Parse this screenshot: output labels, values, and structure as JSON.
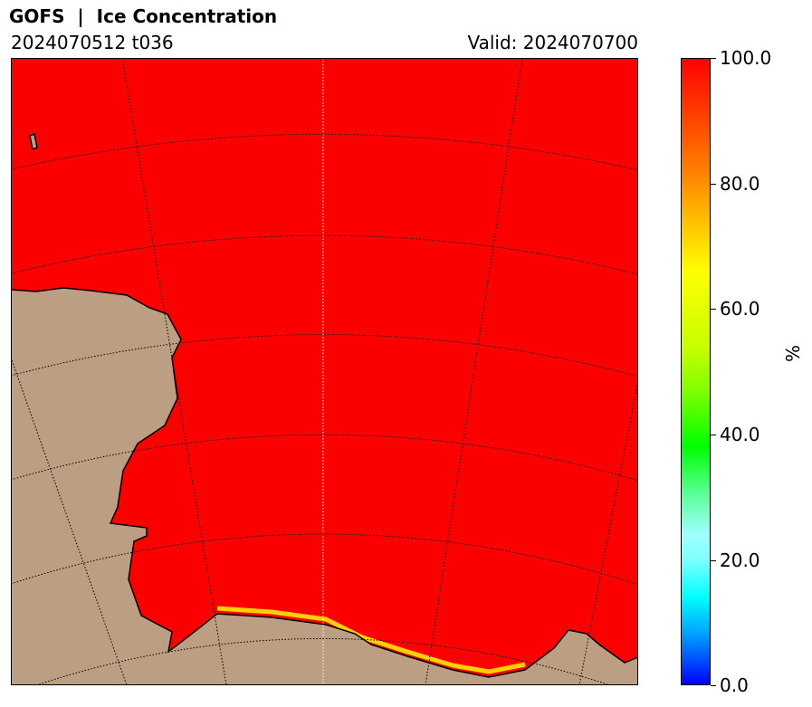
{
  "header": {
    "title": "GOFS  |  Ice Concentration",
    "run": "2024070512 t036",
    "valid": "Valid: 2024070700"
  },
  "colorbar": {
    "unit": "%",
    "ticks": [
      "100.0",
      "80.0",
      "60.0",
      "40.0",
      "20.0",
      "0.0"
    ],
    "tick_values": [
      100,
      80,
      60,
      40,
      20,
      0
    ],
    "range": [
      0,
      100
    ]
  },
  "colors": {
    "ice": "#ff0000",
    "land": "#bc9e82",
    "edge": "#ffff00"
  }
}
